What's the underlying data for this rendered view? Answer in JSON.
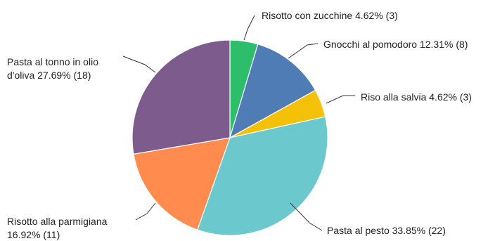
{
  "chart_data": {
    "type": "pie",
    "slices": [
      {
        "label": "Risotto con zucchine",
        "percent": 4.62,
        "count": 3,
        "color": "#2dbe6c",
        "text_lines": [
          "Risotto con zucchine 4.62% (3)"
        ]
      },
      {
        "label": "Gnocchi al pomodoro",
        "percent": 12.31,
        "count": 8,
        "color": "#507cb6",
        "text_lines": [
          "Gnocchi al pomodoro 12.31% (8)"
        ]
      },
      {
        "label": "Riso alla salvia",
        "percent": 4.62,
        "count": 3,
        "color": "#f5c108",
        "text_lines": [
          "Riso alla salvia 4.62% (3)"
        ]
      },
      {
        "label": "Pasta al pesto",
        "percent": 33.85,
        "count": 22,
        "color": "#6bc8cd",
        "text_lines": [
          "Pasta al pesto 33.85% (22)"
        ]
      },
      {
        "label": "Risotto alla parmigiana",
        "percent": 16.92,
        "count": 11,
        "color": "#ff8b4f",
        "text_lines": [
          "Risotto alla parmigiana",
          "16.92% (11)"
        ]
      },
      {
        "label": "Pasta al tonno in olio d'oliva",
        "percent": 27.69,
        "count": 18,
        "color": "#7d5b8d",
        "text_lines": [
          "Pasta al tonno in olio",
          "d'oliva 27.69% (18)"
        ]
      }
    ],
    "start_angle_deg": 0,
    "direction": "clockwise"
  }
}
